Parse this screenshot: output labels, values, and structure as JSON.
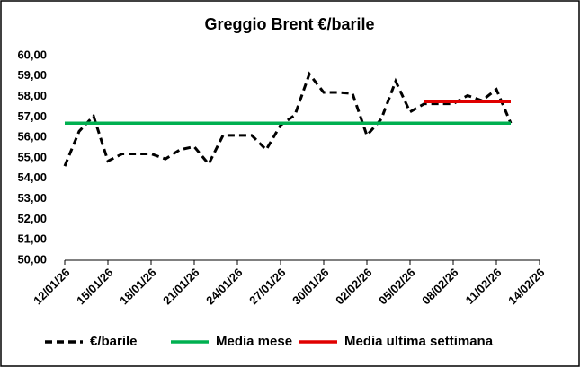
{
  "chart_data": {
    "type": "line",
    "title": "Greggio Brent €/barile",
    "x": [
      "12/01/26",
      "13/01/26",
      "14/01/26",
      "15/01/26",
      "16/01/26",
      "17/01/26",
      "18/01/26",
      "19/01/26",
      "20/01/26",
      "21/01/26",
      "22/01/26",
      "23/01/26",
      "24/01/26",
      "25/01/26",
      "26/01/26",
      "27/01/26",
      "28/01/26",
      "29/01/26",
      "30/01/26",
      "31/01/26",
      "01/02/26",
      "02/02/26",
      "03/02/26",
      "04/02/26",
      "05/02/26",
      "06/02/26",
      "07/02/26",
      "08/02/26",
      "09/02/26",
      "10/02/26",
      "11/02/26",
      "12/02/26"
    ],
    "series": [
      {
        "name": "€/barile",
        "color": "#000000",
        "dashed": true,
        "values": [
          54.6,
          56.3,
          57.05,
          54.85,
          55.2,
          55.2,
          55.2,
          54.95,
          55.4,
          55.55,
          54.7,
          56.1,
          56.1,
          56.1,
          55.4,
          56.6,
          57.1,
          59.1,
          58.2,
          58.2,
          58.15,
          56.1,
          56.9,
          58.75,
          57.25,
          57.65,
          57.65,
          57.65,
          58.05,
          57.8,
          58.35,
          56.7
        ]
      },
      {
        "name": "Media mese",
        "color": "#00b050",
        "x": [
          "12/01/26",
          "12/02/26"
        ],
        "values": [
          56.7,
          56.7
        ]
      },
      {
        "name": "Media ultima settimana",
        "color": "#e00000",
        "x": [
          "06/02/26",
          "12/02/26"
        ],
        "values": [
          57.75,
          57.75
        ]
      }
    ],
    "xlim": [
      "12/01/26",
      "14/02/26"
    ],
    "xticks": [
      "12/01/26",
      "15/01/26",
      "18/01/26",
      "21/01/26",
      "24/01/26",
      "27/01/26",
      "30/01/26",
      "02/02/26",
      "05/02/26",
      "08/02/26",
      "11/02/26",
      "14/02/26"
    ],
    "ylim": [
      50,
      60
    ],
    "yticks": [
      {
        "value": 50,
        "label": "50,00"
      },
      {
        "value": 51,
        "label": "51,00"
      },
      {
        "value": 52,
        "label": "52,00"
      },
      {
        "value": 53,
        "label": "53,00"
      },
      {
        "value": 54,
        "label": "54,00"
      },
      {
        "value": 55,
        "label": "55,00"
      },
      {
        "value": 56,
        "label": "56,00"
      },
      {
        "value": 57,
        "label": "57,00"
      },
      {
        "value": 58,
        "label": "58,00"
      },
      {
        "value": 59,
        "label": "59,00"
      },
      {
        "value": 60,
        "label": "60,00"
      }
    ],
    "legend": "bottom"
  }
}
